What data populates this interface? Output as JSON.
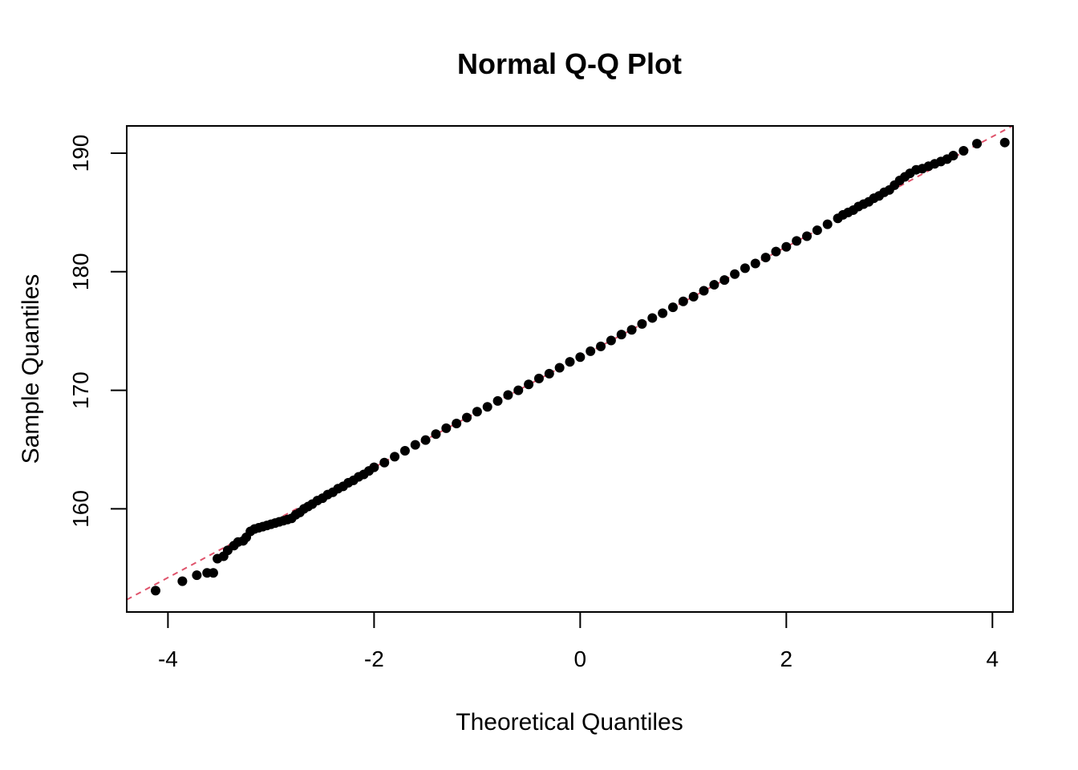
{
  "chart_data": {
    "type": "scatter",
    "title": "Normal Q-Q Plot",
    "xlabel": "Theoretical Quantiles",
    "ylabel": "Sample Quantiles",
    "xlim": [
      -4.4,
      4.2
    ],
    "ylim": [
      151.3,
      192.3
    ],
    "x_ticks": [
      -4,
      -2,
      0,
      2,
      4
    ],
    "x_tick_labels": [
      "-4",
      "-2",
      "0",
      "2",
      "4"
    ],
    "y_ticks": [
      160,
      170,
      180,
      190
    ],
    "y_tick_labels": [
      "160",
      "170",
      "180",
      "190"
    ],
    "grid": false,
    "legend": "none",
    "point_color": "#000000",
    "reference_line": {
      "intercept": 172.8,
      "slope": 4.65,
      "color": "#DF536B",
      "style": "dashed"
    },
    "series": [
      {
        "points": [
          [
            -4.12,
            153.1
          ],
          [
            -3.86,
            153.9
          ],
          [
            -3.72,
            154.4
          ],
          [
            -3.62,
            154.6
          ],
          [
            -3.56,
            154.6
          ],
          [
            -3.52,
            155.8
          ],
          [
            -3.46,
            156.0
          ],
          [
            -3.42,
            156.5
          ],
          [
            -3.36,
            156.9
          ],
          [
            -3.32,
            157.2
          ],
          [
            -3.27,
            157.3
          ],
          [
            -3.24,
            157.6
          ],
          [
            -3.2,
            158.1
          ],
          [
            -3.16,
            158.3
          ],
          [
            -3.12,
            158.4
          ],
          [
            -3.08,
            158.5
          ],
          [
            -3.04,
            158.6
          ],
          [
            -3.0,
            158.7
          ],
          [
            -2.96,
            158.8
          ],
          [
            -2.92,
            158.9
          ],
          [
            -2.88,
            159.0
          ],
          [
            -2.84,
            159.1
          ],
          [
            -2.8,
            159.2
          ],
          [
            -2.76,
            159.5
          ],
          [
            -2.72,
            159.7
          ],
          [
            -2.68,
            160.0
          ],
          [
            -2.64,
            160.2
          ],
          [
            -2.6,
            160.4
          ],
          [
            -2.55,
            160.7
          ],
          [
            -2.5,
            160.9
          ],
          [
            -2.45,
            161.2
          ],
          [
            -2.4,
            161.4
          ],
          [
            -2.35,
            161.7
          ],
          [
            -2.3,
            161.9
          ],
          [
            -2.25,
            162.2
          ],
          [
            -2.2,
            162.4
          ],
          [
            -2.15,
            162.7
          ],
          [
            -2.1,
            162.9
          ],
          [
            -2.05,
            163.2
          ],
          [
            -2.0,
            163.5
          ],
          [
            -1.9,
            163.9
          ],
          [
            -1.8,
            164.4
          ],
          [
            -1.7,
            164.9
          ],
          [
            -1.6,
            165.4
          ],
          [
            -1.5,
            165.8
          ],
          [
            -1.4,
            166.3
          ],
          [
            -1.3,
            166.8
          ],
          [
            -1.2,
            167.2
          ],
          [
            -1.1,
            167.7
          ],
          [
            -1.0,
            168.2
          ],
          [
            -0.9,
            168.6
          ],
          [
            -0.8,
            169.1
          ],
          [
            -0.7,
            169.6
          ],
          [
            -0.6,
            170.0
          ],
          [
            -0.5,
            170.5
          ],
          [
            -0.4,
            171.0
          ],
          [
            -0.3,
            171.4
          ],
          [
            -0.2,
            171.9
          ],
          [
            -0.1,
            172.4
          ],
          [
            0.0,
            172.8
          ],
          [
            0.1,
            173.3
          ],
          [
            0.2,
            173.7
          ],
          [
            0.3,
            174.2
          ],
          [
            0.4,
            174.7
          ],
          [
            0.5,
            175.1
          ],
          [
            0.6,
            175.6
          ],
          [
            0.7,
            176.1
          ],
          [
            0.8,
            176.5
          ],
          [
            0.9,
            177.0
          ],
          [
            1.0,
            177.5
          ],
          [
            1.1,
            177.9
          ],
          [
            1.2,
            178.4
          ],
          [
            1.3,
            178.9
          ],
          [
            1.4,
            179.3
          ],
          [
            1.5,
            179.8
          ],
          [
            1.6,
            180.3
          ],
          [
            1.7,
            180.7
          ],
          [
            1.8,
            181.2
          ],
          [
            1.9,
            181.7
          ],
          [
            2.0,
            182.1
          ],
          [
            2.1,
            182.6
          ],
          [
            2.2,
            183.0
          ],
          [
            2.3,
            183.5
          ],
          [
            2.4,
            184.0
          ],
          [
            2.5,
            184.5
          ],
          [
            2.55,
            184.8
          ],
          [
            2.6,
            185.0
          ],
          [
            2.65,
            185.2
          ],
          [
            2.7,
            185.5
          ],
          [
            2.75,
            185.7
          ],
          [
            2.8,
            185.9
          ],
          [
            2.85,
            186.2
          ],
          [
            2.9,
            186.4
          ],
          [
            2.95,
            186.7
          ],
          [
            3.0,
            186.9
          ],
          [
            3.05,
            187.3
          ],
          [
            3.1,
            187.7
          ],
          [
            3.15,
            188.0
          ],
          [
            3.2,
            188.3
          ],
          [
            3.26,
            188.6
          ],
          [
            3.32,
            188.7
          ],
          [
            3.38,
            188.9
          ],
          [
            3.44,
            189.1
          ],
          [
            3.5,
            189.3
          ],
          [
            3.56,
            189.5
          ],
          [
            3.62,
            189.8
          ],
          [
            3.72,
            190.2
          ],
          [
            3.85,
            190.8
          ],
          [
            4.12,
            190.9
          ]
        ]
      }
    ]
  }
}
